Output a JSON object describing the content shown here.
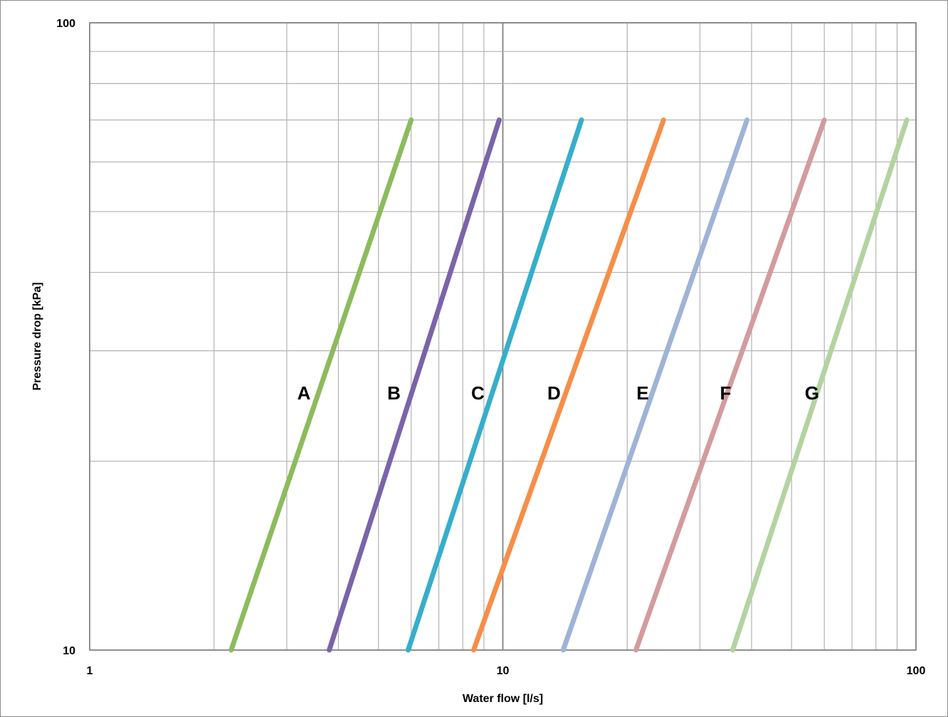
{
  "chart_data": {
    "type": "line",
    "x_scale": "log",
    "y_scale": "log",
    "xlabel": "Water flow [l/s]",
    "ylabel": "Pressure drop [kPa]",
    "xlim": [
      1,
      100
    ],
    "ylim": [
      10,
      100
    ],
    "x_ticks": [
      "1",
      "10",
      "100"
    ],
    "y_ticks": [
      "10",
      "100"
    ],
    "grid": true,
    "legend": "none",
    "series": [
      {
        "name": "A",
        "color": "#8cbb5c",
        "x": [
          2.2,
          6.0
        ],
        "y": [
          10,
          70
        ]
      },
      {
        "name": "B",
        "color": "#7b63a9",
        "x": [
          3.8,
          9.8
        ],
        "y": [
          10,
          70
        ]
      },
      {
        "name": "C",
        "color": "#36aecb",
        "x": [
          5.9,
          15.5
        ],
        "y": [
          10,
          70
        ]
      },
      {
        "name": "D",
        "color": "#f68e48",
        "x": [
          8.5,
          24.5
        ],
        "y": [
          10,
          70
        ]
      },
      {
        "name": "E",
        "color": "#9fb3d7",
        "x": [
          14.0,
          39.0
        ],
        "y": [
          10,
          70
        ]
      },
      {
        "name": "F",
        "color": "#d39b9d",
        "x": [
          21.0,
          60.0
        ],
        "y": [
          10,
          70
        ]
      },
      {
        "name": "G",
        "color": "#b3d3a0",
        "x": [
          36.0,
          95.0
        ],
        "y": [
          10,
          70
        ]
      }
    ],
    "annotations": [
      {
        "text": "A",
        "x": 3.3,
        "y": 25.7
      },
      {
        "text": "B",
        "x": 5.45,
        "y": 25.7
      },
      {
        "text": "C",
        "x": 8.7,
        "y": 25.7
      },
      {
        "text": "D",
        "x": 13.3,
        "y": 25.7
      },
      {
        "text": "E",
        "x": 21.8,
        "y": 25.7
      },
      {
        "text": "F",
        "x": 34.6,
        "y": 25.7
      },
      {
        "text": "G",
        "x": 56.0,
        "y": 25.7
      }
    ]
  }
}
